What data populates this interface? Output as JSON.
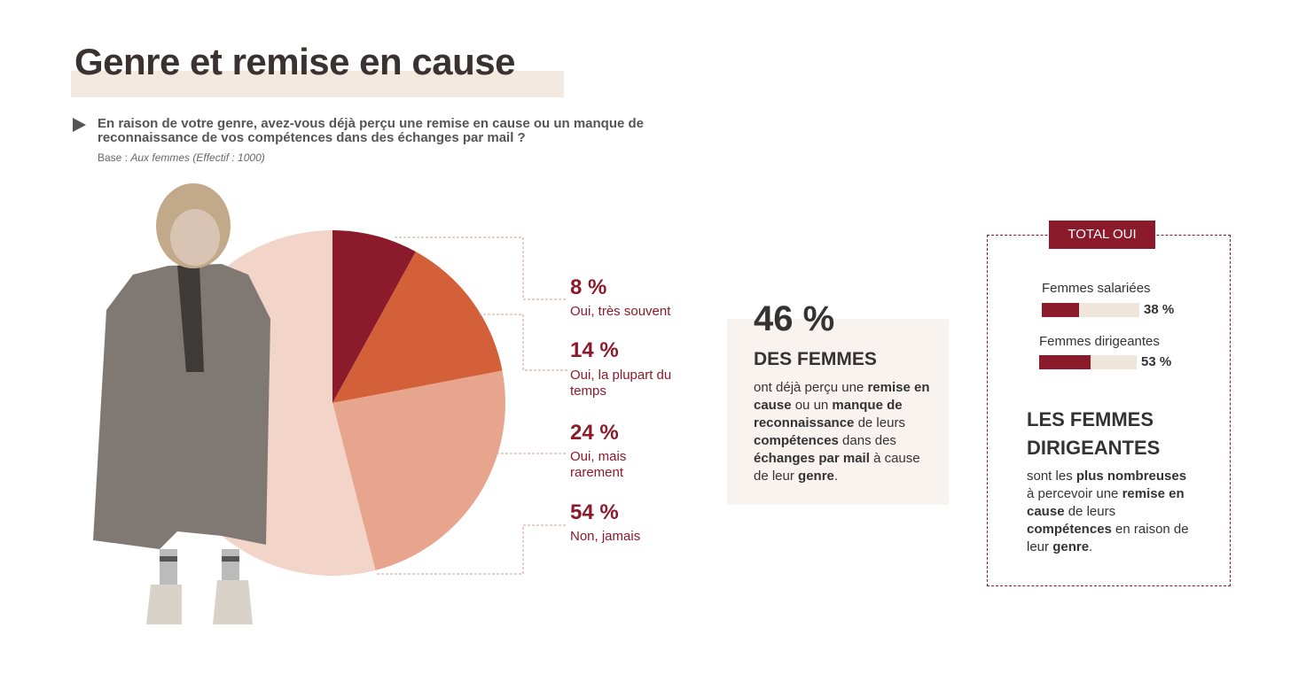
{
  "header": {
    "title": "Genre et remise en cause",
    "question": "En raison de votre genre, avez-vous déjà perçu une remise en cause ou un manque de reconnaissance de vos compétences dans des échanges par mail ?",
    "base": [
      {
        "text": "Base : ",
        "italic": false
      },
      {
        "text": "Aux femmes (Effectif : 1000)",
        "italic": true
      }
    ]
  },
  "chart_data": [
    {
      "type": "pie",
      "categories": [
        "Oui, très souvent",
        "Oui, la plupart du temps",
        "Oui, mais rarement",
        "Non, jamais"
      ],
      "values": [
        8,
        14,
        24,
        54
      ],
      "value_labels": [
        "8 %",
        "14 %",
        "24 %",
        "54 %"
      ],
      "colors": [
        "#8b1a2b",
        "#d4603a",
        "#e8a58e",
        "#f2d5c8"
      ]
    },
    {
      "type": "bar",
      "title": "TOTAL OUI",
      "categories": [
        "Femmes salariées",
        "Femmes dirigeantes"
      ],
      "values": [
        38,
        53
      ],
      "value_labels": [
        "38 %",
        "53 %"
      ],
      "xlim": [
        0,
        100
      ],
      "color": "#8b1a2b",
      "track_color": "#efe5db"
    }
  ],
  "highlight": {
    "value": "46 %",
    "heading": "DES FEMMES",
    "body": [
      {
        "text": "ont déjà perçu une ",
        "bold": false
      },
      {
        "text": "remise en cause",
        "bold": true
      },
      {
        "text": " ou un ",
        "bold": false
      },
      {
        "text": "manque de reconnaissance",
        "bold": true
      },
      {
        "text": " de leurs ",
        "bold": false
      },
      {
        "text": "compétences",
        "bold": true
      },
      {
        "text": " dans des ",
        "bold": false
      },
      {
        "text": "échanges par mail",
        "bold": true
      },
      {
        "text": " à cause de leur ",
        "bold": false
      },
      {
        "text": "genre",
        "bold": true
      },
      {
        "text": ".",
        "bold": false
      }
    ]
  },
  "total_box": {
    "heading": "LES FEMMES DIRIGEANTES",
    "body": [
      {
        "text": "sont les ",
        "bold": false
      },
      {
        "text": "plus nombreuses",
        "bold": true
      },
      {
        "text": " à percevoir une ",
        "bold": false
      },
      {
        "text": "remise en cause",
        "bold": true
      },
      {
        "text": " de leurs ",
        "bold": false
      },
      {
        "text": "compétences",
        "bold": true
      },
      {
        "text": " en raison de leur ",
        "bold": false
      },
      {
        "text": "genre",
        "bold": true
      },
      {
        "text": ".",
        "bold": false
      }
    ]
  }
}
